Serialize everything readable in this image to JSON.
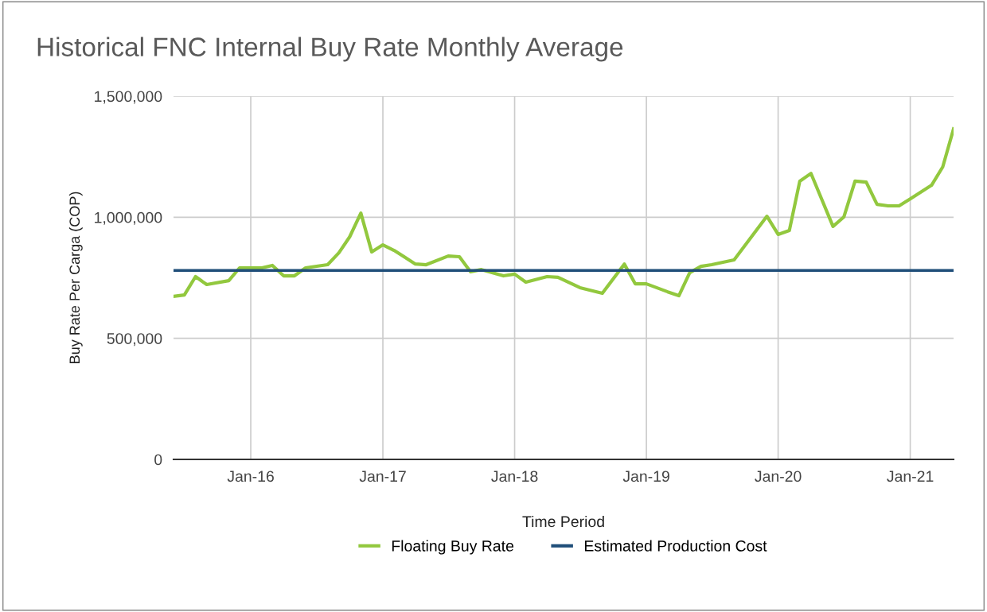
{
  "chart_data": {
    "type": "line",
    "title": "Historical FNC Internal Buy Rate Monthly Average",
    "xlabel": "Time Period",
    "ylabel": "Buy Rate Per Carga (COP)",
    "series": [
      {
        "name": "Floating Buy Rate",
        "color": "#92c83e",
        "x": [
          "2015-06",
          "2015-07",
          "2015-08",
          "2015-09",
          "2015-11",
          "2015-12",
          "2016-02",
          "2016-03",
          "2016-04",
          "2016-05",
          "2016-06",
          "2016-08",
          "2016-09",
          "2016-10",
          "2016-11",
          "2016-12",
          "2017-01",
          "2017-02",
          "2017-04",
          "2017-05",
          "2017-07",
          "2017-08",
          "2017-09",
          "2017-10",
          "2017-12",
          "2018-01",
          "2018-02",
          "2018-04",
          "2018-05",
          "2018-07",
          "2018-09",
          "2018-11",
          "2018-12",
          "2019-01",
          "2019-03",
          "2019-04",
          "2019-05",
          "2019-06",
          "2019-07",
          "2019-09",
          "2019-12",
          "2020-01",
          "2020-02",
          "2020-03",
          "2020-04",
          "2020-06",
          "2020-07",
          "2020-08",
          "2020-09",
          "2020-10",
          "2020-11",
          "2020-12",
          "2021-01",
          "2021-03",
          "2021-04",
          "2021-05"
        ],
        "values": [
          673000,
          679000,
          755000,
          722000,
          738000,
          791000,
          791000,
          801000,
          758000,
          758000,
          791000,
          804000,
          853000,
          919000,
          1017000,
          857000,
          886000,
          863000,
          807000,
          804000,
          840000,
          837000,
          775000,
          784000,
          758000,
          765000,
          732000,
          755000,
          752000,
          709000,
          686000,
          807000,
          725000,
          725000,
          692000,
          676000,
          771000,
          797000,
          804000,
          824000,
          1004000,
          929000,
          945000,
          1149000,
          1181000,
          962000,
          1001000,
          1149000,
          1145000,
          1053000,
          1047000,
          1047000,
          1076000,
          1132000,
          1208000,
          1365000
        ]
      },
      {
        "name": "Estimated Production Cost",
        "color": "#1f4e79",
        "x": [
          "2015-06",
          "2021-05"
        ],
        "values": [
          780000,
          780000
        ]
      }
    ],
    "xlim": [
      "2015-06",
      "2021-05"
    ],
    "xticks": [
      {
        "value": "2016-01",
        "label": "Jan-16"
      },
      {
        "value": "2017-01",
        "label": "Jan-17"
      },
      {
        "value": "2018-01",
        "label": "Jan-18"
      },
      {
        "value": "2019-01",
        "label": "Jan-19"
      },
      {
        "value": "2020-01",
        "label": "Jan-20"
      },
      {
        "value": "2021-01",
        "label": "Jan-21"
      }
    ],
    "ylim": [
      0,
      1500000
    ],
    "yticks": [
      0,
      {
        "value": 500000,
        "label": "500,000"
      },
      {
        "value": 1000000,
        "label": "1,000,000"
      },
      {
        "value": 1500000,
        "label": "1,500,000"
      }
    ],
    "grid": true,
    "legend": "bottom",
    "marker": "none",
    "line_style": "solid"
  }
}
